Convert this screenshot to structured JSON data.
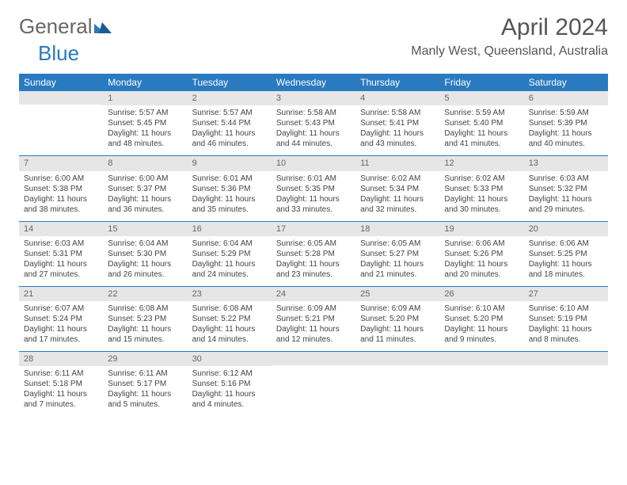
{
  "brand": {
    "part1": "General",
    "part2": "Blue"
  },
  "title": "April 2024",
  "location": "Manly West, Queensland, Australia",
  "colors": {
    "header_bg": "#2a7ac0",
    "header_text": "#ffffff",
    "daynum_bg": "#e6e6e6",
    "daynum_text": "#666666",
    "border": "#2a7ac0",
    "body_text": "#444444",
    "page_bg": "#ffffff"
  },
  "typography": {
    "title_fontsize": 30,
    "location_fontsize": 16,
    "header_fontsize": 12,
    "cell_fontsize": 10
  },
  "layout": {
    "columns": 7,
    "rows": 5
  },
  "dayNames": [
    "Sunday",
    "Monday",
    "Tuesday",
    "Wednesday",
    "Thursday",
    "Friday",
    "Saturday"
  ],
  "weeks": [
    [
      {
        "num": "",
        "sunrise": "",
        "sunset": "",
        "daylight": ""
      },
      {
        "num": "1",
        "sunrise": "Sunrise: 5:57 AM",
        "sunset": "Sunset: 5:45 PM",
        "daylight": "Daylight: 11 hours and 48 minutes."
      },
      {
        "num": "2",
        "sunrise": "Sunrise: 5:57 AM",
        "sunset": "Sunset: 5:44 PM",
        "daylight": "Daylight: 11 hours and 46 minutes."
      },
      {
        "num": "3",
        "sunrise": "Sunrise: 5:58 AM",
        "sunset": "Sunset: 5:43 PM",
        "daylight": "Daylight: 11 hours and 44 minutes."
      },
      {
        "num": "4",
        "sunrise": "Sunrise: 5:58 AM",
        "sunset": "Sunset: 5:41 PM",
        "daylight": "Daylight: 11 hours and 43 minutes."
      },
      {
        "num": "5",
        "sunrise": "Sunrise: 5:59 AM",
        "sunset": "Sunset: 5:40 PM",
        "daylight": "Daylight: 11 hours and 41 minutes."
      },
      {
        "num": "6",
        "sunrise": "Sunrise: 5:59 AM",
        "sunset": "Sunset: 5:39 PM",
        "daylight": "Daylight: 11 hours and 40 minutes."
      }
    ],
    [
      {
        "num": "7",
        "sunrise": "Sunrise: 6:00 AM",
        "sunset": "Sunset: 5:38 PM",
        "daylight": "Daylight: 11 hours and 38 minutes."
      },
      {
        "num": "8",
        "sunrise": "Sunrise: 6:00 AM",
        "sunset": "Sunset: 5:37 PM",
        "daylight": "Daylight: 11 hours and 36 minutes."
      },
      {
        "num": "9",
        "sunrise": "Sunrise: 6:01 AM",
        "sunset": "Sunset: 5:36 PM",
        "daylight": "Daylight: 11 hours and 35 minutes."
      },
      {
        "num": "10",
        "sunrise": "Sunrise: 6:01 AM",
        "sunset": "Sunset: 5:35 PM",
        "daylight": "Daylight: 11 hours and 33 minutes."
      },
      {
        "num": "11",
        "sunrise": "Sunrise: 6:02 AM",
        "sunset": "Sunset: 5:34 PM",
        "daylight": "Daylight: 11 hours and 32 minutes."
      },
      {
        "num": "12",
        "sunrise": "Sunrise: 6:02 AM",
        "sunset": "Sunset: 5:33 PM",
        "daylight": "Daylight: 11 hours and 30 minutes."
      },
      {
        "num": "13",
        "sunrise": "Sunrise: 6:03 AM",
        "sunset": "Sunset: 5:32 PM",
        "daylight": "Daylight: 11 hours and 29 minutes."
      }
    ],
    [
      {
        "num": "14",
        "sunrise": "Sunrise: 6:03 AM",
        "sunset": "Sunset: 5:31 PM",
        "daylight": "Daylight: 11 hours and 27 minutes."
      },
      {
        "num": "15",
        "sunrise": "Sunrise: 6:04 AM",
        "sunset": "Sunset: 5:30 PM",
        "daylight": "Daylight: 11 hours and 26 minutes."
      },
      {
        "num": "16",
        "sunrise": "Sunrise: 6:04 AM",
        "sunset": "Sunset: 5:29 PM",
        "daylight": "Daylight: 11 hours and 24 minutes."
      },
      {
        "num": "17",
        "sunrise": "Sunrise: 6:05 AM",
        "sunset": "Sunset: 5:28 PM",
        "daylight": "Daylight: 11 hours and 23 minutes."
      },
      {
        "num": "18",
        "sunrise": "Sunrise: 6:05 AM",
        "sunset": "Sunset: 5:27 PM",
        "daylight": "Daylight: 11 hours and 21 minutes."
      },
      {
        "num": "19",
        "sunrise": "Sunrise: 6:06 AM",
        "sunset": "Sunset: 5:26 PM",
        "daylight": "Daylight: 11 hours and 20 minutes."
      },
      {
        "num": "20",
        "sunrise": "Sunrise: 6:06 AM",
        "sunset": "Sunset: 5:25 PM",
        "daylight": "Daylight: 11 hours and 18 minutes."
      }
    ],
    [
      {
        "num": "21",
        "sunrise": "Sunrise: 6:07 AM",
        "sunset": "Sunset: 5:24 PM",
        "daylight": "Daylight: 11 hours and 17 minutes."
      },
      {
        "num": "22",
        "sunrise": "Sunrise: 6:08 AM",
        "sunset": "Sunset: 5:23 PM",
        "daylight": "Daylight: 11 hours and 15 minutes."
      },
      {
        "num": "23",
        "sunrise": "Sunrise: 6:08 AM",
        "sunset": "Sunset: 5:22 PM",
        "daylight": "Daylight: 11 hours and 14 minutes."
      },
      {
        "num": "24",
        "sunrise": "Sunrise: 6:09 AM",
        "sunset": "Sunset: 5:21 PM",
        "daylight": "Daylight: 11 hours and 12 minutes."
      },
      {
        "num": "25",
        "sunrise": "Sunrise: 6:09 AM",
        "sunset": "Sunset: 5:20 PM",
        "daylight": "Daylight: 11 hours and 11 minutes."
      },
      {
        "num": "26",
        "sunrise": "Sunrise: 6:10 AM",
        "sunset": "Sunset: 5:20 PM",
        "daylight": "Daylight: 11 hours and 9 minutes."
      },
      {
        "num": "27",
        "sunrise": "Sunrise: 6:10 AM",
        "sunset": "Sunset: 5:19 PM",
        "daylight": "Daylight: 11 hours and 8 minutes."
      }
    ],
    [
      {
        "num": "28",
        "sunrise": "Sunrise: 6:11 AM",
        "sunset": "Sunset: 5:18 PM",
        "daylight": "Daylight: 11 hours and 7 minutes."
      },
      {
        "num": "29",
        "sunrise": "Sunrise: 6:11 AM",
        "sunset": "Sunset: 5:17 PM",
        "daylight": "Daylight: 11 hours and 5 minutes."
      },
      {
        "num": "30",
        "sunrise": "Sunrise: 6:12 AM",
        "sunset": "Sunset: 5:16 PM",
        "daylight": "Daylight: 11 hours and 4 minutes."
      },
      {
        "num": "",
        "sunrise": "",
        "sunset": "",
        "daylight": ""
      },
      {
        "num": "",
        "sunrise": "",
        "sunset": "",
        "daylight": ""
      },
      {
        "num": "",
        "sunrise": "",
        "sunset": "",
        "daylight": ""
      },
      {
        "num": "",
        "sunrise": "",
        "sunset": "",
        "daylight": ""
      }
    ]
  ]
}
